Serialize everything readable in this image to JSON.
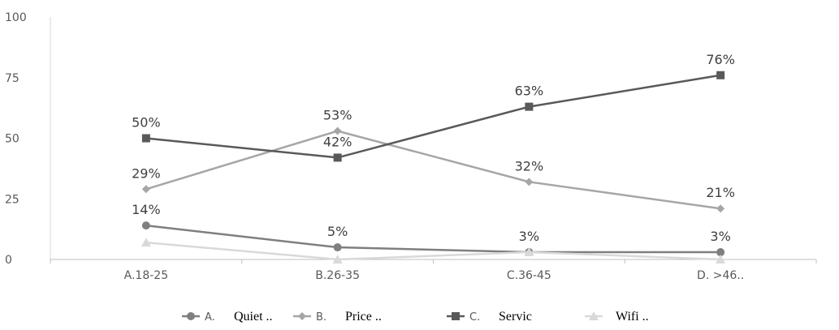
{
  "chart_data": {
    "type": "line",
    "categories": [
      "A.18-25",
      "B.26-35",
      "C.36-45",
      "D.   >46.."
    ],
    "ylim": [
      0,
      100
    ],
    "yticks": [
      "0",
      "25",
      "50",
      "75",
      "100"
    ],
    "grid": false,
    "legend_position": "bottom",
    "series": [
      {
        "name": "A.  Quiet  ..",
        "values": [
          14,
          5,
          3,
          3
        ],
        "labels": [
          "14%",
          "5%",
          "3%",
          "3%"
        ],
        "color": "#7f7f7f",
        "marker": "circle"
      },
      {
        "name": "B.  Price  ..",
        "values": [
          29,
          53,
          32,
          21
        ],
        "labels": [
          "29%",
          "53%",
          "32%",
          "21%"
        ],
        "color": "#a6a6a6",
        "marker": "diamond"
      },
      {
        "name": "C.  Servic",
        "values": [
          50,
          42,
          63,
          76
        ],
        "labels": [
          "50%",
          "42%",
          "63%",
          "76%"
        ],
        "color": "#595959",
        "marker": "square"
      },
      {
        "name": "Wifi  ..",
        "values": [
          7,
          0,
          3,
          0
        ],
        "labels": [],
        "color": "#d9d9d9",
        "marker": "triangle"
      }
    ]
  }
}
